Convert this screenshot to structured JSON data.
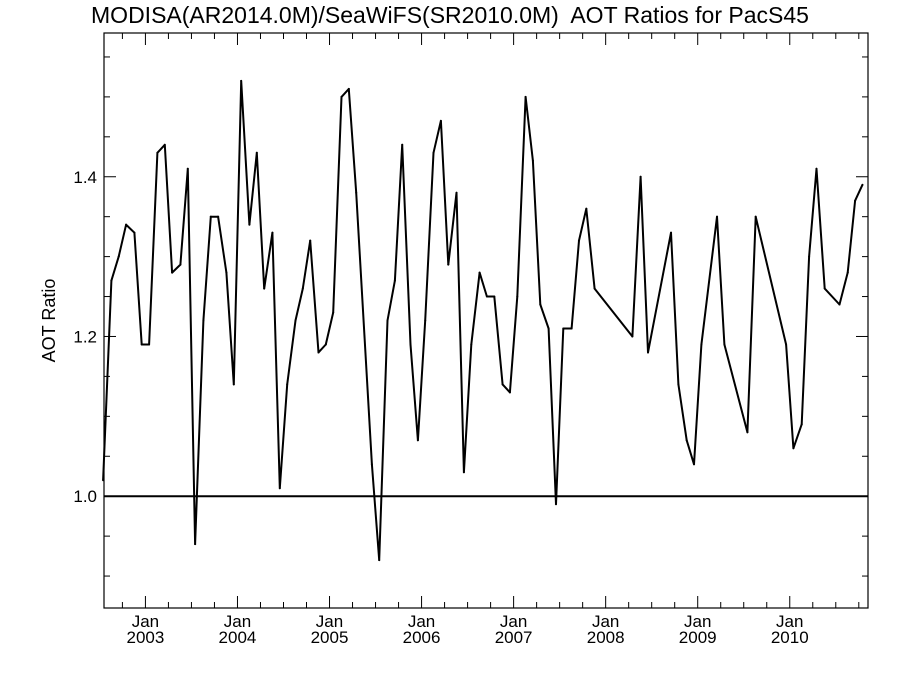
{
  "chart_data": {
    "type": "line",
    "title": "MODISA(AR2014.0M)/SeaWiFS(SR2010.0M)  AOT Ratios for PacS45",
    "ylabel": "AOT Ratio",
    "xlabel": "",
    "ylim": [
      0.86,
      1.58
    ],
    "yticks": [
      1.0,
      1.2,
      1.4
    ],
    "yticklabels": [
      "1.0",
      "1.2",
      "1.4"
    ],
    "xlim": [
      2002.55,
      2010.85
    ],
    "xticks": [
      {
        "x": 2003.0,
        "month": "Jan",
        "year": "2003"
      },
      {
        "x": 2004.0,
        "month": "Jan",
        "year": "2004"
      },
      {
        "x": 2005.0,
        "month": "Jan",
        "year": "2005"
      },
      {
        "x": 2006.0,
        "month": "Jan",
        "year": "2006"
      },
      {
        "x": 2007.0,
        "month": "Jan",
        "year": "2007"
      },
      {
        "x": 2008.0,
        "month": "Jan",
        "year": "2008"
      },
      {
        "x": 2009.0,
        "month": "Jan",
        "year": "2009"
      },
      {
        "x": 2010.0,
        "month": "Jan",
        "year": "2010"
      }
    ],
    "reference_line": {
      "y": 1.0
    },
    "grid": false,
    "series": [
      {
        "color": "#000000",
        "x": [
          2002.54,
          2002.63,
          2002.71,
          2002.79,
          2002.88,
          2002.96,
          2003.04,
          2003.13,
          2003.21,
          2003.29,
          2003.38,
          2003.46,
          2003.54,
          2003.63,
          2003.71,
          2003.79,
          2003.88,
          2003.96,
          2004.04,
          2004.13,
          2004.21,
          2004.29,
          2004.38,
          2004.46,
          2004.54,
          2004.63,
          2004.71,
          2004.79,
          2004.88,
          2004.96,
          2005.04,
          2005.13,
          2005.21,
          2005.29,
          2005.38,
          2005.46,
          2005.54,
          2005.63,
          2005.71,
          2005.79,
          2005.88,
          2005.96,
          2006.04,
          2006.13,
          2006.21,
          2006.29,
          2006.38,
          2006.46,
          2006.54,
          2006.63,
          2006.71,
          2006.79,
          2006.88,
          2006.96,
          2007.04,
          2007.13,
          2007.21,
          2007.29,
          2007.38,
          2007.46,
          2007.54,
          2007.63,
          2007.71,
          2007.79,
          2007.88,
          2008.29,
          2008.38,
          2008.46,
          2008.71,
          2008.79,
          2008.88,
          2008.96,
          2009.04,
          2009.21,
          2009.29,
          2009.54,
          2009.63,
          2009.96,
          2010.04,
          2010.13,
          2010.21,
          2010.29,
          2010.38,
          2010.54,
          2010.63,
          2010.71,
          2010.79
        ],
        "y": [
          1.02,
          1.27,
          1.3,
          1.34,
          1.33,
          1.19,
          1.19,
          1.43,
          1.44,
          1.28,
          1.29,
          1.41,
          0.94,
          1.22,
          1.35,
          1.35,
          1.28,
          1.14,
          1.52,
          1.34,
          1.43,
          1.26,
          1.33,
          1.01,
          1.14,
          1.22,
          1.26,
          1.32,
          1.18,
          1.19,
          1.23,
          1.5,
          1.51,
          1.38,
          1.2,
          1.04,
          0.92,
          1.22,
          1.27,
          1.44,
          1.19,
          1.07,
          1.22,
          1.43,
          1.47,
          1.29,
          1.38,
          1.03,
          1.19,
          1.28,
          1.25,
          1.25,
          1.14,
          1.13,
          1.25,
          1.5,
          1.42,
          1.24,
          1.21,
          0.99,
          1.21,
          1.21,
          1.32,
          1.36,
          1.26,
          1.2,
          1.4,
          1.18,
          1.33,
          1.14,
          1.07,
          1.04,
          1.19,
          1.35,
          1.19,
          1.08,
          1.35,
          1.19,
          1.06,
          1.09,
          1.3,
          1.41,
          1.26,
          1.24,
          1.28,
          1.37,
          1.39
        ]
      }
    ]
  }
}
